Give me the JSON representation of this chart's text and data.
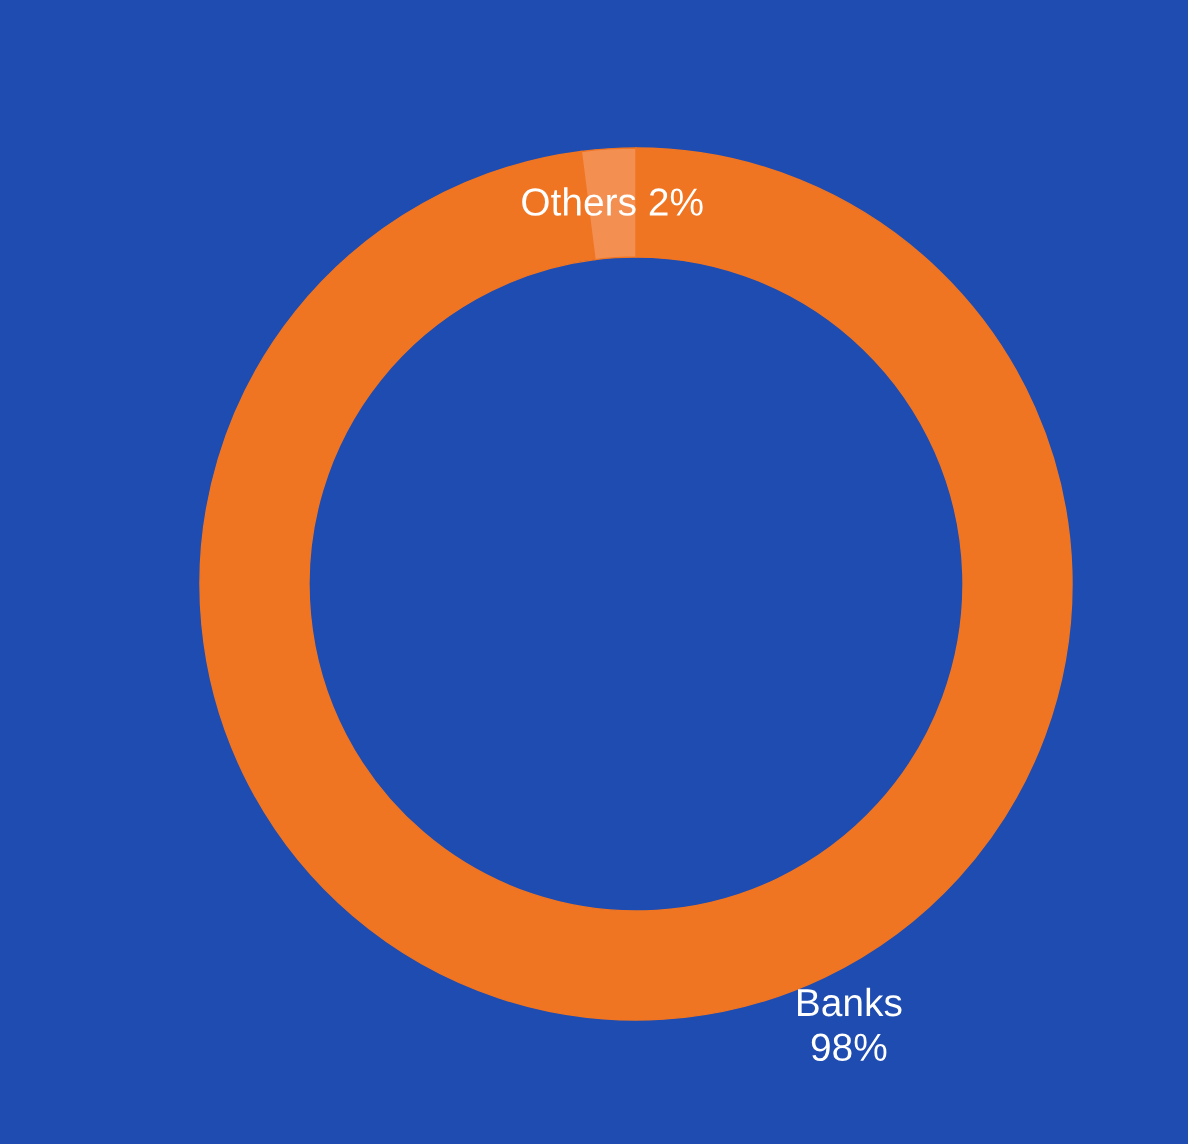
{
  "chart_data": {
    "type": "donut",
    "categories": [
      "Banks",
      "Others"
    ],
    "values": [
      98,
      2
    ],
    "colors": [
      "#f07522",
      "#f48f52"
    ],
    "value_labels": [
      "98%",
      "2%"
    ]
  }
}
